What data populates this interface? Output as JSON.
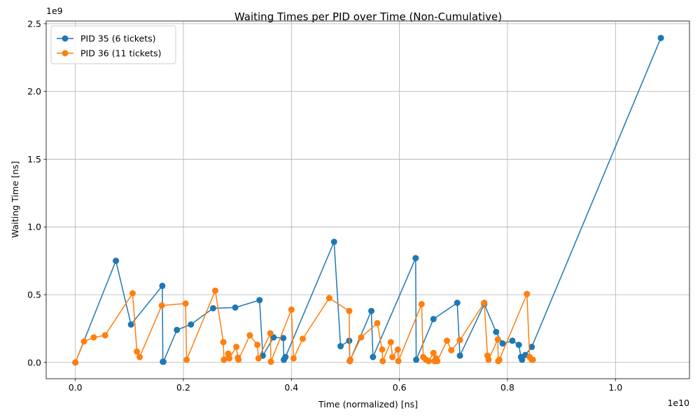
{
  "chart_data": {
    "type": "line",
    "title": "Waiting Times per PID over Time (Non-Cumulative)",
    "xlabel": "Time (normalized) [ns]",
    "ylabel": "Waiting Time [ns]",
    "x_exponent_label": "1e10",
    "y_exponent_label": "1e9",
    "x_scale": 10000000000.0,
    "y_scale": 1000000000.0,
    "xlim": [
      -0.054,
      1.137
    ],
    "ylim": [
      -0.12,
      2.52
    ],
    "x_ticks": [
      0.0,
      0.2,
      0.4,
      0.6,
      0.8,
      1.0
    ],
    "x_tick_labels": [
      "0.0",
      "0.2",
      "0.4",
      "0.6",
      "0.8",
      "1.0"
    ],
    "y_ticks": [
      0.0,
      0.5,
      1.0,
      1.5,
      2.0,
      2.5
    ],
    "y_tick_labels": [
      "0.0",
      "0.5",
      "1.0",
      "1.5",
      "2.0",
      "2.5"
    ],
    "grid": true,
    "legend_position": "top-left",
    "series": [
      {
        "name": "PID 35 (6 tickets)",
        "color": "#1f77b4",
        "points": [
          [
            0.0,
            0.0
          ],
          [
            0.075,
            0.75
          ],
          [
            0.103,
            0.28
          ],
          [
            0.161,
            0.565
          ],
          [
            0.162,
            0.005
          ],
          [
            0.163,
            0.005
          ],
          [
            0.188,
            0.24
          ],
          [
            0.214,
            0.28
          ],
          [
            0.255,
            0.4
          ],
          [
            0.296,
            0.405
          ],
          [
            0.341,
            0.46
          ],
          [
            0.347,
            0.05
          ],
          [
            0.367,
            0.185
          ],
          [
            0.385,
            0.18
          ],
          [
            0.386,
            0.02
          ],
          [
            0.389,
            0.04
          ],
          [
            0.479,
            0.89
          ],
          [
            0.491,
            0.12
          ],
          [
            0.507,
            0.16
          ],
          [
            0.508,
            0.01
          ],
          [
            0.548,
            0.38
          ],
          [
            0.551,
            0.04
          ],
          [
            0.63,
            0.77
          ],
          [
            0.631,
            0.02
          ],
          [
            0.663,
            0.32
          ],
          [
            0.707,
            0.44
          ],
          [
            0.712,
            0.05
          ],
          [
            0.757,
            0.43
          ],
          [
            0.779,
            0.225
          ],
          [
            0.791,
            0.14
          ],
          [
            0.809,
            0.16
          ],
          [
            0.821,
            0.13
          ],
          [
            0.825,
            0.04
          ],
          [
            0.827,
            0.02
          ],
          [
            0.833,
            0.055
          ],
          [
            0.845,
            0.115
          ],
          [
            1.084,
            2.395
          ]
        ]
      },
      {
        "name": "PID 36 (11 tickets)",
        "color": "#ff7f0e",
        "points": [
          [
            0.0,
            0.0
          ],
          [
            0.016,
            0.155
          ],
          [
            0.034,
            0.185
          ],
          [
            0.055,
            0.2
          ],
          [
            0.106,
            0.51
          ],
          [
            0.114,
            0.08
          ],
          [
            0.119,
            0.04
          ],
          [
            0.16,
            0.42
          ],
          [
            0.204,
            0.435
          ],
          [
            0.206,
            0.02
          ],
          [
            0.259,
            0.53
          ],
          [
            0.274,
            0.15
          ],
          [
            0.275,
            0.02
          ],
          [
            0.283,
            0.065
          ],
          [
            0.285,
            0.03
          ],
          [
            0.298,
            0.115
          ],
          [
            0.301,
            0.035
          ],
          [
            0.302,
            0.02
          ],
          [
            0.323,
            0.2
          ],
          [
            0.337,
            0.13
          ],
          [
            0.339,
            0.03
          ],
          [
            0.361,
            0.215
          ],
          [
            0.362,
            0.005
          ],
          [
            0.4,
            0.39
          ],
          [
            0.404,
            0.03
          ],
          [
            0.421,
            0.175
          ],
          [
            0.47,
            0.475
          ],
          [
            0.507,
            0.38
          ],
          [
            0.508,
            0.01
          ],
          [
            0.509,
            0.02
          ],
          [
            0.529,
            0.185
          ],
          [
            0.559,
            0.29
          ],
          [
            0.568,
            0.095
          ],
          [
            0.569,
            0.01
          ],
          [
            0.584,
            0.15
          ],
          [
            0.587,
            0.04
          ],
          [
            0.597,
            0.095
          ],
          [
            0.598,
            0.01
          ],
          [
            0.641,
            0.43
          ],
          [
            0.644,
            0.04
          ],
          [
            0.649,
            0.02
          ],
          [
            0.654,
            0.01
          ],
          [
            0.663,
            0.07
          ],
          [
            0.665,
            0.01
          ],
          [
            0.668,
            0.03
          ],
          [
            0.67,
            0.01
          ],
          [
            0.688,
            0.16
          ],
          [
            0.696,
            0.09
          ],
          [
            0.712,
            0.165
          ],
          [
            0.757,
            0.44
          ],
          [
            0.763,
            0.05
          ],
          [
            0.765,
            0.02
          ],
          [
            0.782,
            0.17
          ],
          [
            0.783,
            0.01
          ],
          [
            0.785,
            0.02
          ],
          [
            0.836,
            0.505
          ],
          [
            0.841,
            0.04
          ],
          [
            0.845,
            0.02
          ],
          [
            0.847,
            0.02
          ]
        ]
      }
    ]
  }
}
